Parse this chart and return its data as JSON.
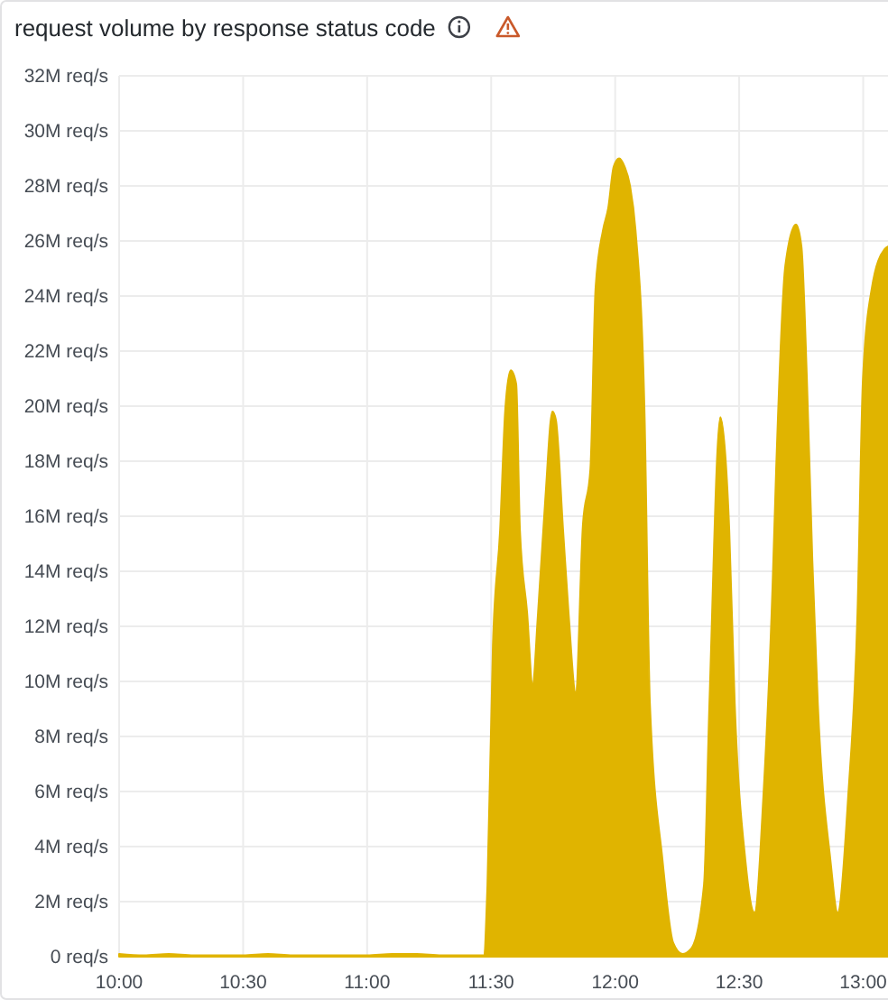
{
  "chart_data": {
    "type": "area",
    "title": "request volume by response status code",
    "x": [
      10.0,
      10.1,
      10.2,
      10.3,
      10.4,
      10.5,
      10.6,
      10.7,
      10.8,
      10.9,
      11.0,
      11.1,
      11.2,
      11.3,
      11.4,
      11.47,
      11.485,
      11.507,
      11.536,
      11.557,
      11.579,
      11.601,
      11.616,
      11.645,
      11.667,
      11.689,
      11.718,
      11.747,
      11.761,
      11.79,
      11.812,
      11.841,
      11.87,
      11.9,
      11.921,
      11.951,
      11.972,
      11.994,
      12.016,
      12.038,
      12.06,
      12.082,
      12.118,
      12.14,
      12.191,
      12.234,
      12.271,
      12.307,
      12.358,
      12.38,
      12.424,
      12.46,
      12.482,
      12.525,
      12.562,
      12.598,
      12.635,
      12.649,
      12.686,
      12.729,
      12.751,
      12.773,
      12.795,
      12.817,
      12.868,
      12.897,
      12.94,
      12.977,
      12.999,
      13.035,
      13.086,
      13.1
    ],
    "values": [
      0.1,
      0.05,
      0.1,
      0.05,
      0.05,
      0.05,
      0.1,
      0.05,
      0.05,
      0.05,
      0.05,
      0.1,
      0.1,
      0.05,
      0.05,
      0.05,
      2.6,
      11.3,
      15.5,
      19.9,
      21.3,
      20.8,
      15.5,
      12.5,
      9.9,
      12.5,
      16.6,
      19.8,
      19.5,
      15.5,
      12.5,
      9.6,
      15.7,
      17.7,
      24.3,
      26.4,
      27.2,
      28.7,
      29.0,
      28.7,
      28.0,
      26.4,
      19.9,
      9.2,
      3.5,
      0.5,
      0.1,
      0.3,
      2.6,
      9.2,
      19.6,
      15.5,
      9.2,
      3.5,
      1.6,
      5.9,
      13.6,
      17.7,
      25.1,
      26.6,
      25.8,
      21.0,
      14.4,
      9.2,
      3.5,
      1.6,
      5.9,
      12.5,
      21.0,
      24.3,
      25.7,
      25.8
    ],
    "color": "#e0b400",
    "xlim": [
      10,
      13.1
    ],
    "xticks": [
      {
        "value": 10,
        "label": "10:00"
      },
      {
        "value": 10.5,
        "label": "10:30"
      },
      {
        "value": 11,
        "label": "11:00"
      },
      {
        "value": 11.5,
        "label": "11:30"
      },
      {
        "value": 12,
        "label": "12:00"
      },
      {
        "value": 12.5,
        "label": "12:30"
      },
      {
        "value": 13,
        "label": "13:00"
      }
    ],
    "ylim": [
      0,
      32
    ],
    "yticks": [
      {
        "value": 0,
        "label": "0 req/s"
      },
      {
        "value": 2,
        "label": "2M req/s"
      },
      {
        "value": 4,
        "label": "4M req/s"
      },
      {
        "value": 6,
        "label": "6M req/s"
      },
      {
        "value": 8,
        "label": "8M req/s"
      },
      {
        "value": 10,
        "label": "10M req/s"
      },
      {
        "value": 12,
        "label": "12M req/s"
      },
      {
        "value": 14,
        "label": "14M req/s"
      },
      {
        "value": 16,
        "label": "16M req/s"
      },
      {
        "value": 18,
        "label": "18M req/s"
      },
      {
        "value": 20,
        "label": "20M req/s"
      },
      {
        "value": 22,
        "label": "22M req/s"
      },
      {
        "value": 24,
        "label": "24M req/s"
      },
      {
        "value": 26,
        "label": "26M req/s"
      },
      {
        "value": 28,
        "label": "28M req/s"
      },
      {
        "value": 30,
        "label": "30M req/s"
      },
      {
        "value": 32,
        "label": "32M req/s"
      }
    ],
    "grid": true
  }
}
